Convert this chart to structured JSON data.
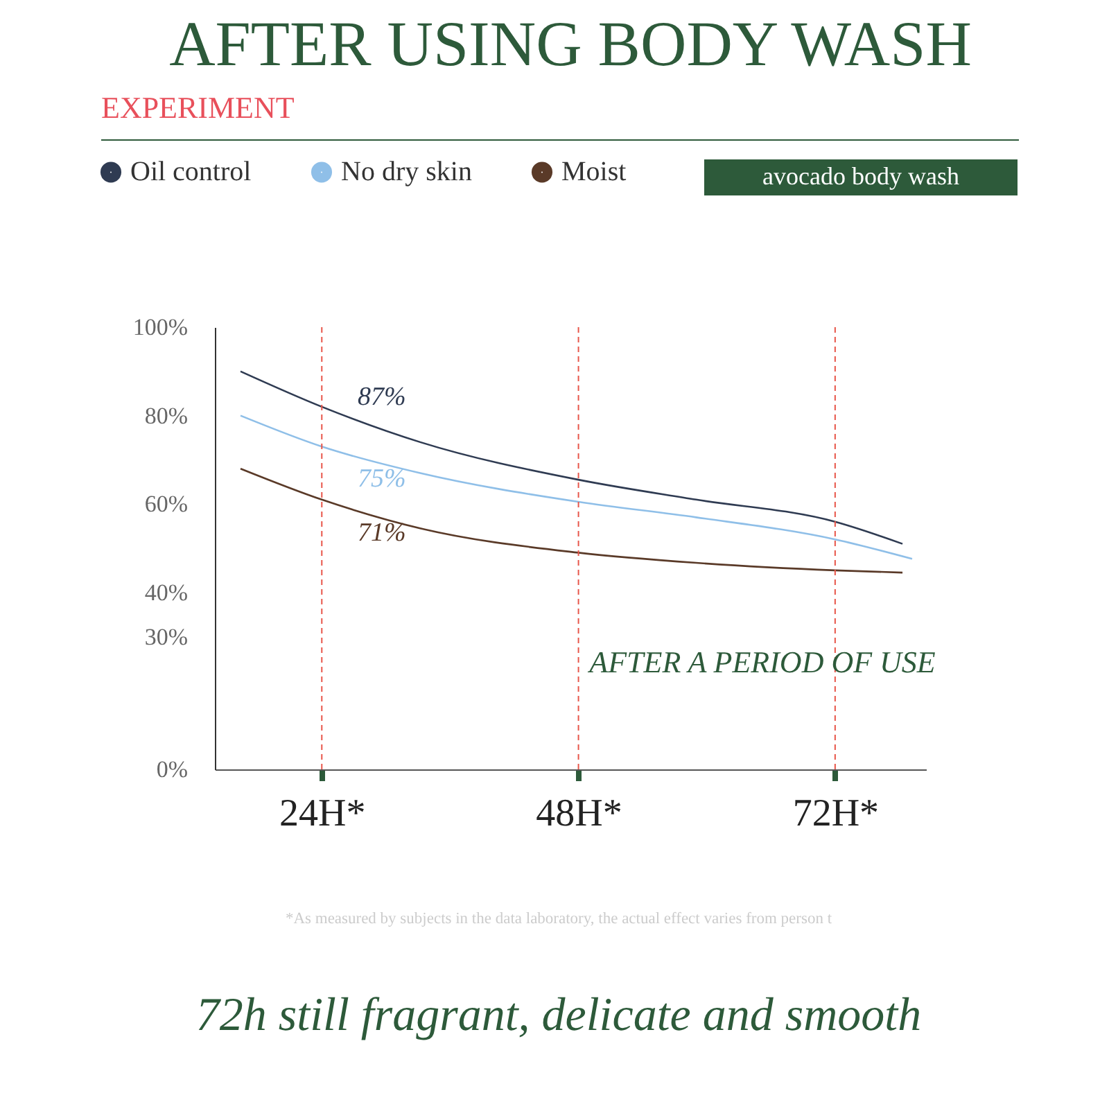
{
  "chart_data": {
    "type": "line",
    "title": "AFTER USING BODY WASH",
    "subtitle": "EXPERIMENT",
    "x": [
      16.4,
      24,
      33.2,
      48,
      59,
      72,
      78.3
    ],
    "series": [
      {
        "name": "Oil control",
        "color": "#2f3b52",
        "values": [
          90,
          82,
          74,
          65.5,
          61,
          56,
          51
        ]
      },
      {
        "name": "No dry skin",
        "color": "#8fbfe8",
        "x": [
          16.4,
          24,
          33.2,
          48,
          59,
          72,
          79.2
        ],
        "values": [
          80,
          73,
          67,
          60.5,
          57,
          52,
          47.6
        ]
      },
      {
        "name": "Moist",
        "color": "#5a3a28",
        "values": [
          68,
          61,
          54.5,
          49,
          46.7,
          45,
          44.5
        ]
      }
    ],
    "xlim": [
      14,
      80.5
    ],
    "xticks": [
      {
        "value": 24,
        "label": "24H*"
      },
      {
        "value": 48,
        "label": "48H*"
      },
      {
        "value": 72,
        "label": "72H*"
      }
    ],
    "ylim": [
      0,
      100
    ],
    "yticks": [
      {
        "value": 0,
        "label": "0%"
      },
      {
        "value": 30,
        "label": "30%"
      },
      {
        "value": 40,
        "label": "40%"
      },
      {
        "value": 60,
        "label": "60%"
      },
      {
        "value": 80,
        "label": "80%"
      },
      {
        "value": 100,
        "label": "100%"
      }
    ],
    "ref_lines": [
      {
        "axis": "x",
        "value": 24,
        "color": "#e8564a",
        "line_style": "dashed"
      },
      {
        "axis": "x",
        "value": 48,
        "color": "#e8564a",
        "line_style": "dashed"
      },
      {
        "axis": "x",
        "value": 72,
        "color": "#e8564a",
        "line_style": "dashed"
      }
    ],
    "annotations": [
      "87%",
      "75%",
      "71%",
      "avocado body wash",
      "AFTER A PERIOD OF USE",
      "*As measured by subjects in the data laboratory, the actual effect varies from person t",
      "72h still fragrant, delicate and smooth"
    ],
    "legend": "top",
    "grid": false,
    "marker": "none",
    "line_style": "solid"
  }
}
